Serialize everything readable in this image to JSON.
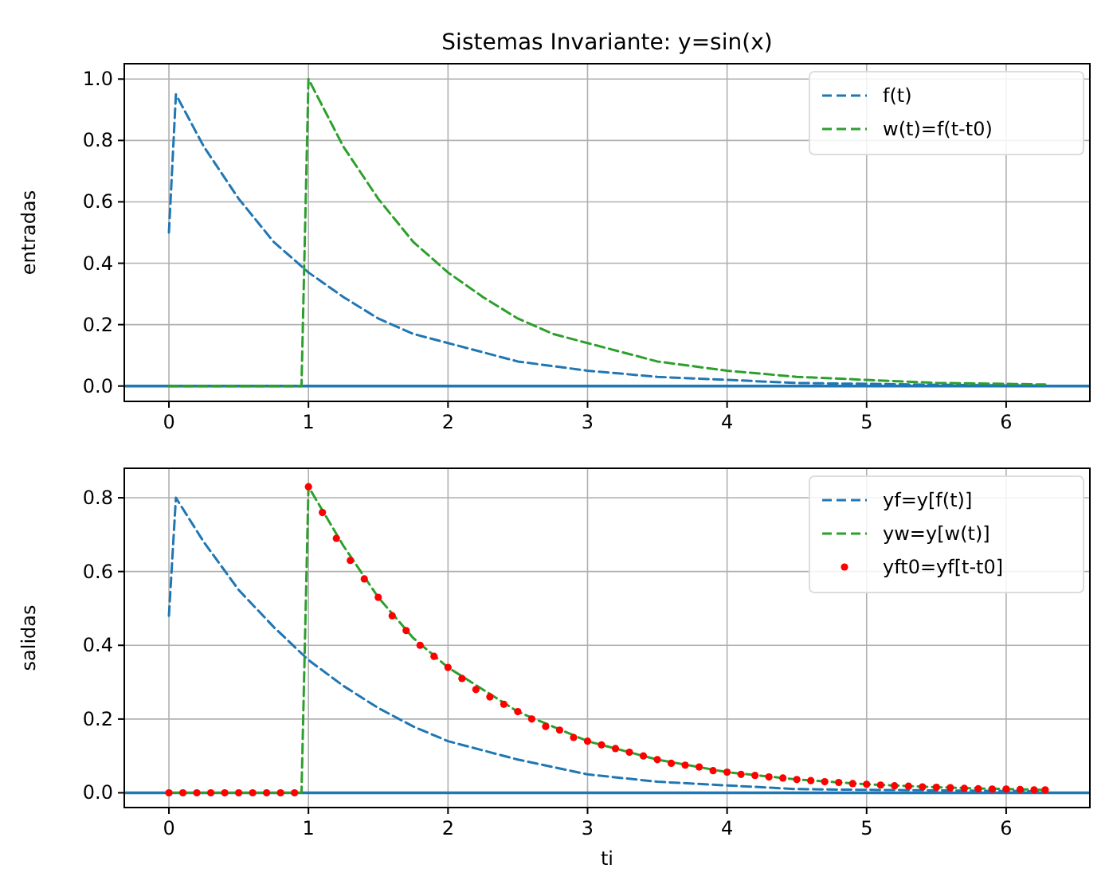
{
  "chart_data": [
    {
      "type": "line",
      "title": "Sistemas Invariante: y=sin(x)",
      "ylabel": "entradas",
      "xlim": [
        -0.32,
        6.6
      ],
      "ylim": [
        -0.05,
        1.05
      ],
      "xticks": [
        0,
        1,
        2,
        3,
        4,
        5,
        6
      ],
      "yticks": [
        {
          "value": 0,
          "label": "0.0"
        },
        {
          "value": 0.2,
          "label": "0.2"
        },
        {
          "value": 0.4,
          "label": "0.4"
        },
        {
          "value": 0.6,
          "label": "0.6"
        },
        {
          "value": 0.8,
          "label": "0.8"
        },
        {
          "value": 1,
          "label": "1.0"
        }
      ],
      "grid": true,
      "legend": "top right",
      "ref_lines": [
        {
          "axis": "y",
          "value": 0,
          "color": "#1f77b4",
          "line_style": "solid"
        }
      ],
      "series": [
        {
          "name": "f(t)",
          "color": "#1f77b4",
          "line_style": "dashed",
          "x": [
            0,
            0.05,
            0.25,
            0.5,
            0.75,
            1,
            1.25,
            1.5,
            1.75,
            2,
            2.5,
            3,
            3.5,
            4,
            4.5,
            5,
            5.5,
            6,
            6.28
          ],
          "values": [
            0.5,
            0.95,
            0.78,
            0.61,
            0.47,
            0.37,
            0.29,
            0.22,
            0.17,
            0.14,
            0.08,
            0.05,
            0.03,
            0.02,
            0.01,
            0.007,
            0.004,
            0.002,
            0.002
          ]
        },
        {
          "name": "w(t)=f(t-t0)",
          "color": "#2ca02c",
          "line_style": "dashed",
          "x": [
            0,
            0.95,
            1,
            1.25,
            1.5,
            1.75,
            2,
            2.25,
            2.5,
            2.75,
            3,
            3.5,
            4,
            4.5,
            5,
            5.5,
            6,
            6.28
          ],
          "values": [
            0,
            0,
            1,
            0.78,
            0.61,
            0.47,
            0.37,
            0.29,
            0.22,
            0.17,
            0.14,
            0.08,
            0.05,
            0.03,
            0.02,
            0.01,
            0.007,
            0.005
          ]
        }
      ]
    },
    {
      "type": "line",
      "xlabel": "ti",
      "ylabel": "salidas",
      "xlim": [
        -0.32,
        6.6
      ],
      "ylim": [
        -0.04,
        0.88
      ],
      "xticks": [
        0,
        1,
        2,
        3,
        4,
        5,
        6
      ],
      "yticks": [
        {
          "value": 0,
          "label": "0.0"
        },
        {
          "value": 0.2,
          "label": "0.2"
        },
        {
          "value": 0.4,
          "label": "0.4"
        },
        {
          "value": 0.6,
          "label": "0.6"
        },
        {
          "value": 0.8,
          "label": "0.8"
        }
      ],
      "grid": true,
      "legend": "top right",
      "ref_lines": [
        {
          "axis": "y",
          "value": 0,
          "color": "#1f77b4",
          "line_style": "solid"
        }
      ],
      "series": [
        {
          "name": "yf=y[f(t)]",
          "color": "#1f77b4",
          "line_style": "dashed",
          "x": [
            0,
            0.05,
            0.25,
            0.5,
            0.75,
            1,
            1.25,
            1.5,
            1.75,
            2,
            2.5,
            3,
            3.5,
            4,
            4.5,
            5,
            6,
            6.28
          ],
          "values": [
            0.48,
            0.8,
            0.68,
            0.55,
            0.45,
            0.36,
            0.29,
            0.23,
            0.18,
            0.14,
            0.09,
            0.05,
            0.03,
            0.02,
            0.01,
            0.008,
            0.005,
            0.004
          ]
        },
        {
          "name": "yw=y[w(t)]",
          "color": "#2ca02c",
          "line_style": "dashed",
          "x": [
            0,
            0.95,
            1,
            1.25,
            1.5,
            1.75,
            2,
            2.5,
            3,
            3.5,
            4,
            4.5,
            5,
            5.5,
            6,
            6.28
          ],
          "values": [
            0,
            0,
            0.83,
            0.67,
            0.53,
            0.42,
            0.34,
            0.22,
            0.14,
            0.09,
            0.056,
            0.036,
            0.023,
            0.015,
            0.01,
            0.008
          ]
        },
        {
          "name": "yft0=yf[t-t0]",
          "type": "scatter",
          "marker": "circle",
          "color": "#ff0000",
          "x": [
            0,
            0.1,
            0.2,
            0.3,
            0.4,
            0.5,
            0.6,
            0.7,
            0.8,
            0.9,
            1,
            1.1,
            1.2,
            1.3,
            1.4,
            1.5,
            1.6,
            1.7,
            1.8,
            1.9,
            2,
            2.1,
            2.2,
            2.3,
            2.4,
            2.5,
            2.6,
            2.7,
            2.8,
            2.9,
            3,
            3.1,
            3.2,
            3.3,
            3.4,
            3.5,
            3.6,
            3.7,
            3.8,
            3.9,
            4,
            4.1,
            4.2,
            4.3,
            4.4,
            4.5,
            4.6,
            4.7,
            4.8,
            4.9,
            5,
            5.1,
            5.2,
            5.3,
            5.4,
            5.5,
            5.6,
            5.7,
            5.8,
            5.9,
            6,
            6.1,
            6.2,
            6.28
          ],
          "values": [
            0,
            0,
            0,
            0,
            0,
            0,
            0,
            0,
            0,
            0,
            0.83,
            0.76,
            0.69,
            0.63,
            0.58,
            0.53,
            0.48,
            0.44,
            0.4,
            0.37,
            0.34,
            0.31,
            0.28,
            0.26,
            0.24,
            0.22,
            0.2,
            0.18,
            0.17,
            0.15,
            0.14,
            0.13,
            0.12,
            0.11,
            0.1,
            0.09,
            0.08,
            0.075,
            0.07,
            0.06,
            0.056,
            0.05,
            0.047,
            0.043,
            0.04,
            0.036,
            0.033,
            0.03,
            0.028,
            0.025,
            0.023,
            0.021,
            0.019,
            0.018,
            0.016,
            0.015,
            0.014,
            0.012,
            0.011,
            0.01,
            0.01,
            0.009,
            0.008,
            0.008
          ]
        }
      ]
    }
  ]
}
